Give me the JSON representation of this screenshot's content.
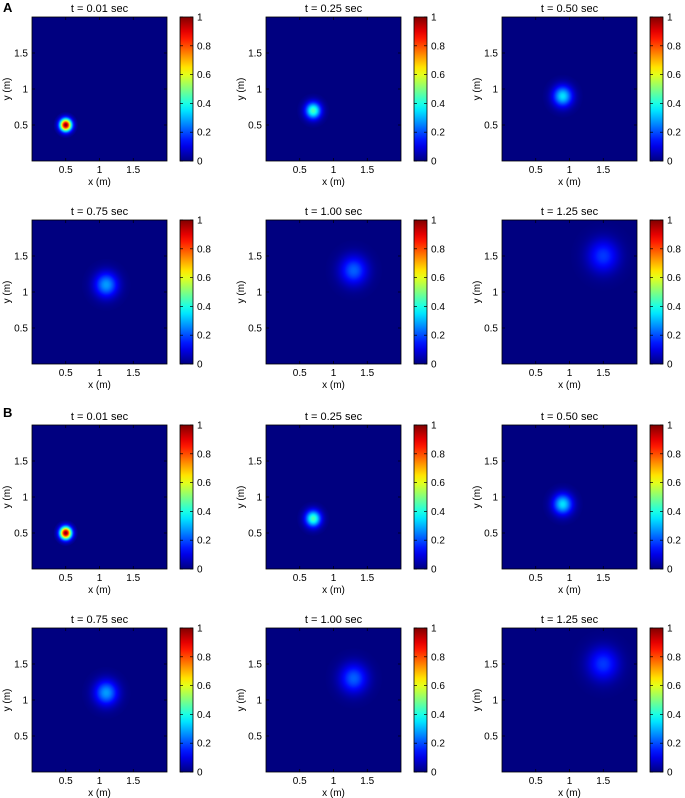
{
  "figure": {
    "panels": [
      {
        "label": "A"
      },
      {
        "label": "B"
      }
    ]
  },
  "chart_data": [
    {
      "panel": "A",
      "type": "heatmap",
      "title": "t = 0.01 sec",
      "xlabel": "x (m)",
      "ylabel": "y (m)",
      "xlim": [
        0,
        2
      ],
      "ylim": [
        0,
        2
      ],
      "xticks": [
        "0.5",
        "1",
        "1.5"
      ],
      "yticks": [
        "0.5",
        "1",
        "1.5"
      ],
      "colorbar": {
        "range": [
          0,
          1
        ],
        "ticks": [
          "0",
          "0.2",
          "0.4",
          "0.6",
          "0.8",
          "1"
        ],
        "colormap": "jet"
      },
      "peak": {
        "x": 0.5,
        "y": 0.5,
        "value": 1.0,
        "sigma": 0.06
      }
    },
    {
      "panel": "A",
      "type": "heatmap",
      "title": "t = 0.25 sec",
      "xlabel": "x (m)",
      "ylabel": "y (m)",
      "xlim": [
        0,
        2
      ],
      "ylim": [
        0,
        2
      ],
      "xticks": [
        "0.5",
        "1",
        "1.5"
      ],
      "yticks": [
        "0.5",
        "1",
        "1.5"
      ],
      "colorbar": {
        "range": [
          0,
          1
        ],
        "ticks": [
          "0",
          "0.2",
          "0.4",
          "0.6",
          "0.8",
          "1"
        ],
        "colormap": "jet"
      },
      "peak": {
        "x": 0.7,
        "y": 0.7,
        "value": 0.45,
        "sigma": 0.08
      }
    },
    {
      "panel": "A",
      "type": "heatmap",
      "title": "t = 0.50 sec",
      "xlabel": "x (m)",
      "ylabel": "y (m)",
      "xlim": [
        0,
        2
      ],
      "ylim": [
        0,
        2
      ],
      "xticks": [
        "0.5",
        "1",
        "1.5"
      ],
      "yticks": [
        "0.5",
        "1",
        "1.5"
      ],
      "colorbar": {
        "range": [
          0,
          1
        ],
        "ticks": [
          "0",
          "0.2",
          "0.4",
          "0.6",
          "0.8",
          "1"
        ],
        "colormap": "jet"
      },
      "peak": {
        "x": 0.9,
        "y": 0.9,
        "value": 0.35,
        "sigma": 0.1
      }
    },
    {
      "panel": "A",
      "type": "heatmap",
      "title": "t = 0.75 sec",
      "xlabel": "x (m)",
      "ylabel": "y (m)",
      "xlim": [
        0,
        2
      ],
      "ylim": [
        0,
        2
      ],
      "xticks": [
        "0.5",
        "1",
        "1.5"
      ],
      "yticks": [
        "0.5",
        "1",
        "1.5"
      ],
      "colorbar": {
        "range": [
          0,
          1
        ],
        "ticks": [
          "0",
          "0.2",
          "0.4",
          "0.6",
          "0.8",
          "1"
        ],
        "colormap": "jet"
      },
      "peak": {
        "x": 1.1,
        "y": 1.1,
        "value": 0.28,
        "sigma": 0.12
      }
    },
    {
      "panel": "A",
      "type": "heatmap",
      "title": "t = 1.00 sec",
      "xlabel": "x (m)",
      "ylabel": "y (m)",
      "xlim": [
        0,
        2
      ],
      "ylim": [
        0,
        2
      ],
      "xticks": [
        "0.5",
        "1",
        "1.5"
      ],
      "yticks": [
        "0.5",
        "1",
        "1.5"
      ],
      "colorbar": {
        "range": [
          0,
          1
        ],
        "ticks": [
          "0",
          "0.2",
          "0.4",
          "0.6",
          "0.8",
          "1"
        ],
        "colormap": "jet"
      },
      "peak": {
        "x": 1.3,
        "y": 1.3,
        "value": 0.22,
        "sigma": 0.14
      }
    },
    {
      "panel": "A",
      "type": "heatmap",
      "title": "t = 1.25 sec",
      "xlabel": "x (m)",
      "ylabel": "y (m)",
      "xlim": [
        0,
        2
      ],
      "ylim": [
        0,
        2
      ],
      "xticks": [
        "0.5",
        "1",
        "1.5"
      ],
      "yticks": [
        "0.5",
        "1",
        "1.5"
      ],
      "colorbar": {
        "range": [
          0,
          1
        ],
        "ticks": [
          "0",
          "0.2",
          "0.4",
          "0.6",
          "0.8",
          "1"
        ],
        "colormap": "jet"
      },
      "peak": {
        "x": 1.5,
        "y": 1.5,
        "value": 0.18,
        "sigma": 0.16
      }
    },
    {
      "panel": "B",
      "type": "heatmap",
      "title": "t = 0.01 sec",
      "xlabel": "x (m)",
      "ylabel": "y (m)",
      "xlim": [
        0,
        2
      ],
      "ylim": [
        0,
        2
      ],
      "xticks": [
        "0.5",
        "1",
        "1.5"
      ],
      "yticks": [
        "0.5",
        "1",
        "1.5"
      ],
      "colorbar": {
        "range": [
          0,
          1
        ],
        "ticks": [
          "0",
          "0.2",
          "0.4",
          "0.6",
          "0.8",
          "1"
        ],
        "colormap": "jet"
      },
      "peak": {
        "x": 0.5,
        "y": 0.5,
        "value": 1.0,
        "sigma": 0.06
      }
    },
    {
      "panel": "B",
      "type": "heatmap",
      "title": "t = 0.25 sec",
      "xlabel": "x (m)",
      "ylabel": "y (m)",
      "xlim": [
        0,
        2
      ],
      "ylim": [
        0,
        2
      ],
      "xticks": [
        "0.5",
        "1",
        "1.5"
      ],
      "yticks": [
        "0.5",
        "1",
        "1.5"
      ],
      "colorbar": {
        "range": [
          0,
          1
        ],
        "ticks": [
          "0",
          "0.2",
          "0.4",
          "0.6",
          "0.8",
          "1"
        ],
        "colormap": "jet"
      },
      "peak": {
        "x": 0.7,
        "y": 0.7,
        "value": 0.45,
        "sigma": 0.08
      }
    },
    {
      "panel": "B",
      "type": "heatmap",
      "title": "t = 0.50 sec",
      "xlabel": "x (m)",
      "ylabel": "y (m)",
      "xlim": [
        0,
        2
      ],
      "ylim": [
        0,
        2
      ],
      "xticks": [
        "0.5",
        "1",
        "1.5"
      ],
      "yticks": [
        "0.5",
        "1",
        "1.5"
      ],
      "colorbar": {
        "range": [
          0,
          1
        ],
        "ticks": [
          "0",
          "0.2",
          "0.4",
          "0.6",
          "0.8",
          "1"
        ],
        "colormap": "jet"
      },
      "peak": {
        "x": 0.9,
        "y": 0.9,
        "value": 0.35,
        "sigma": 0.1
      }
    },
    {
      "panel": "B",
      "type": "heatmap",
      "title": "t = 0.75 sec",
      "xlabel": "x (m)",
      "ylabel": "y (m)",
      "xlim": [
        0,
        2
      ],
      "ylim": [
        0,
        2
      ],
      "xticks": [
        "0.5",
        "1",
        "1.5"
      ],
      "yticks": [
        "0.5",
        "1",
        "1.5"
      ],
      "colorbar": {
        "range": [
          0,
          1
        ],
        "ticks": [
          "0",
          "0.2",
          "0.4",
          "0.6",
          "0.8",
          "1"
        ],
        "colormap": "jet"
      },
      "peak": {
        "x": 1.1,
        "y": 1.1,
        "value": 0.28,
        "sigma": 0.12
      }
    },
    {
      "panel": "B",
      "type": "heatmap",
      "title": "t = 1.00 sec",
      "xlabel": "x (m)",
      "ylabel": "y (m)",
      "xlim": [
        0,
        2
      ],
      "ylim": [
        0,
        2
      ],
      "xticks": [
        "0.5",
        "1",
        "1.5"
      ],
      "yticks": [
        "0.5",
        "1",
        "1.5"
      ],
      "colorbar": {
        "range": [
          0,
          1
        ],
        "ticks": [
          "0",
          "0.2",
          "0.4",
          "0.6",
          "0.8",
          "1"
        ],
        "colormap": "jet"
      },
      "peak": {
        "x": 1.3,
        "y": 1.3,
        "value": 0.22,
        "sigma": 0.14
      }
    },
    {
      "panel": "B",
      "type": "heatmap",
      "title": "t = 1.25 sec",
      "xlabel": "x (m)",
      "ylabel": "y (m)",
      "xlim": [
        0,
        2
      ],
      "ylim": [
        0,
        2
      ],
      "xticks": [
        "0.5",
        "1",
        "1.5"
      ],
      "yticks": [
        "0.5",
        "1",
        "1.5"
      ],
      "colorbar": {
        "range": [
          0,
          1
        ],
        "ticks": [
          "0",
          "0.2",
          "0.4",
          "0.6",
          "0.8",
          "1"
        ],
        "colormap": "jet"
      },
      "peak": {
        "x": 1.5,
        "y": 1.5,
        "value": 0.18,
        "sigma": 0.16
      }
    }
  ]
}
